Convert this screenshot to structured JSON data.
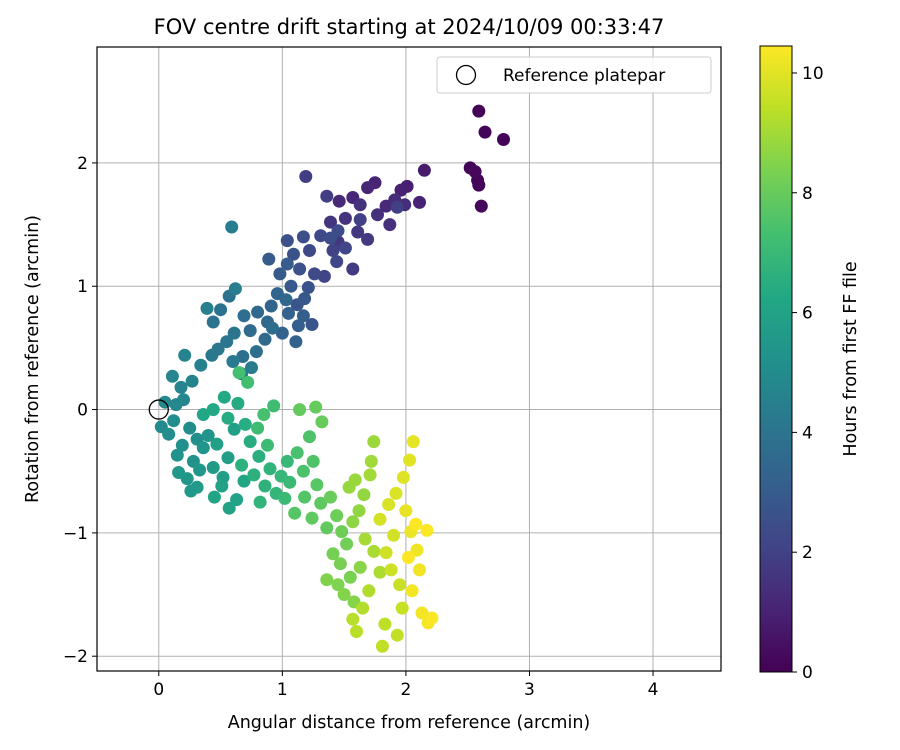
{
  "chart_data": {
    "type": "scatter",
    "title": "FOV centre drift starting at 2024/10/09 00:33:47",
    "xlabel": "Angular distance from reference (arcmin)",
    "ylabel": "Rotation from reference (arcmin)",
    "xlim": [
      -0.5,
      4.55
    ],
    "ylim": [
      -2.12,
      2.94
    ],
    "xticks": [
      0,
      1,
      2,
      3,
      4
    ],
    "yticks": [
      -2,
      -1,
      0,
      1,
      2
    ],
    "grid": true,
    "legend": {
      "position": "top-right",
      "entries": [
        {
          "label": "Reference platepar",
          "marker": "open-circle"
        }
      ]
    },
    "reference_point": {
      "x": 0,
      "y": 0
    },
    "colorbar": {
      "label": "Hours from first FF file",
      "colormap": "viridis",
      "range": [
        0,
        10.45
      ],
      "ticks": [
        0,
        2,
        4,
        6,
        8,
        10
      ]
    },
    "points_note": "Points are colored by hours from first FF file.",
    "points": [
      [
        2.59,
        2.42,
        0.05
      ],
      [
        2.64,
        2.25,
        0.08
      ],
      [
        2.79,
        2.19,
        0.1
      ],
      [
        2.52,
        1.96,
        0.12
      ],
      [
        2.58,
        1.86,
        0.14
      ],
      [
        2.59,
        1.82,
        0.16
      ],
      [
        2.61,
        1.65,
        0.18
      ],
      [
        2.56,
        1.93,
        0.2
      ],
      [
        2.15,
        1.94,
        0.8
      ],
      [
        2.01,
        1.81,
        0.9
      ],
      [
        1.96,
        1.78,
        0.95
      ],
      [
        2.11,
        1.68,
        1.0
      ],
      [
        1.75,
        1.84,
        1.05
      ],
      [
        1.69,
        1.8,
        1.1
      ],
      [
        1.57,
        1.72,
        1.15
      ],
      [
        1.46,
        1.69,
        1.2
      ],
      [
        1.84,
        1.65,
        1.25
      ],
      [
        1.91,
        1.7,
        1.3
      ],
      [
        1.99,
        1.66,
        1.35
      ],
      [
        1.87,
        1.5,
        1.4
      ],
      [
        1.77,
        1.58,
        1.45
      ],
      [
        1.63,
        1.66,
        1.5
      ],
      [
        1.51,
        1.55,
        1.55
      ],
      [
        1.39,
        1.52,
        1.6
      ],
      [
        1.45,
        1.36,
        1.65
      ],
      [
        1.61,
        1.44,
        1.7
      ],
      [
        1.69,
        1.38,
        1.75
      ],
      [
        1.57,
        1.14,
        1.8
      ],
      [
        1.36,
        1.73,
        1.85
      ],
      [
        1.19,
        1.89,
        1.9
      ],
      [
        1.93,
        1.64,
        1.95
      ],
      [
        1.63,
        1.54,
        2.0
      ],
      [
        1.41,
        1.29,
        2.05
      ],
      [
        1.34,
        1.08,
        2.1
      ],
      [
        1.51,
        1.31,
        2.15
      ],
      [
        1.44,
        1.2,
        2.2
      ],
      [
        1.31,
        1.41,
        2.25
      ],
      [
        1.22,
        1.29,
        2.3
      ],
      [
        1.26,
        1.1,
        2.35
      ],
      [
        1.45,
        1.45,
        2.4
      ],
      [
        1.39,
        1.39,
        2.45
      ],
      [
        1.17,
        1.4,
        2.5
      ],
      [
        1.04,
        1.37,
        2.55
      ],
      [
        1.09,
        1.26,
        2.6
      ],
      [
        1.14,
        1.14,
        2.65
      ],
      [
        1.21,
        0.99,
        2.7
      ],
      [
        1.12,
        0.85,
        2.75
      ],
      [
        1.24,
        0.69,
        2.8
      ],
      [
        1.18,
        0.9,
        2.85
      ],
      [
        1.07,
        1.0,
        2.9
      ],
      [
        0.98,
        1.1,
        2.95
      ],
      [
        0.89,
        1.22,
        3.0
      ],
      [
        1.04,
        1.18,
        3.05
      ],
      [
        1.17,
        0.76,
        3.1
      ],
      [
        1.13,
        0.68,
        3.15
      ],
      [
        1.05,
        0.78,
        3.2
      ],
      [
        1.11,
        0.55,
        3.25
      ],
      [
        1.0,
        0.62,
        3.3
      ],
      [
        0.91,
        0.84,
        3.35
      ],
      [
        0.96,
        0.94,
        3.4
      ],
      [
        1.03,
        0.89,
        3.45
      ],
      [
        0.88,
        0.71,
        3.5
      ],
      [
        0.8,
        0.79,
        3.55
      ],
      [
        0.74,
        0.64,
        3.6
      ],
      [
        0.86,
        0.57,
        3.65
      ],
      [
        0.92,
        0.66,
        3.7
      ],
      [
        0.69,
        0.76,
        3.75
      ],
      [
        0.79,
        0.47,
        3.8
      ],
      [
        0.68,
        0.43,
        3.85
      ],
      [
        0.57,
        0.92,
        3.9
      ],
      [
        0.5,
        0.81,
        3.95
      ],
      [
        0.44,
        0.71,
        4.0
      ],
      [
        0.61,
        0.62,
        4.05
      ],
      [
        0.55,
        0.55,
        4.1
      ],
      [
        0.48,
        0.49,
        4.15
      ],
      [
        0.43,
        0.44,
        4.2
      ],
      [
        0.6,
        0.39,
        4.25
      ],
      [
        0.67,
        0.29,
        4.3
      ],
      [
        0.75,
        0.34,
        4.35
      ],
      [
        0.59,
        1.48,
        4.4
      ],
      [
        0.62,
        0.98,
        4.45
      ],
      [
        0.39,
        0.82,
        4.5
      ],
      [
        0.34,
        0.36,
        4.55
      ],
      [
        0.21,
        0.44,
        4.6
      ],
      [
        0.27,
        0.23,
        4.65
      ],
      [
        0.18,
        0.18,
        4.7
      ],
      [
        0.11,
        0.27,
        4.75
      ],
      [
        0.2,
        0.08,
        4.8
      ],
      [
        0.14,
        0.04,
        4.85
      ],
      [
        0.05,
        0.06,
        4.9
      ],
      [
        0.02,
        -0.14,
        4.95
      ],
      [
        0.08,
        -0.2,
        5.0
      ],
      [
        0.12,
        -0.09,
        5.05
      ],
      [
        0.25,
        -0.15,
        5.1
      ],
      [
        0.19,
        -0.29,
        5.15
      ],
      [
        0.31,
        -0.24,
        5.2
      ],
      [
        0.15,
        -0.37,
        5.25
      ],
      [
        0.28,
        -0.42,
        5.3
      ],
      [
        0.36,
        -0.31,
        5.35
      ],
      [
        0.4,
        -0.21,
        5.4
      ],
      [
        0.33,
        -0.49,
        5.45
      ],
      [
        0.23,
        -0.56,
        5.5
      ],
      [
        0.16,
        -0.51,
        5.55
      ],
      [
        0.26,
        -0.66,
        5.6
      ],
      [
        0.31,
        -0.63,
        5.65
      ],
      [
        0.44,
        -0.47,
        5.7
      ],
      [
        0.52,
        -0.55,
        5.75
      ],
      [
        0.56,
        -0.39,
        5.8
      ],
      [
        0.47,
        -0.28,
        5.85
      ],
      [
        0.61,
        -0.16,
        5.9
      ],
      [
        0.51,
        -0.62,
        5.95
      ],
      [
        0.63,
        -0.73,
        6.0
      ],
      [
        0.57,
        -0.8,
        6.05
      ],
      [
        0.45,
        -0.71,
        6.1
      ],
      [
        0.69,
        -0.58,
        6.15
      ],
      [
        0.36,
        -0.04,
        6.2
      ],
      [
        0.44,
        0.0,
        6.25
      ],
      [
        0.53,
        0.1,
        6.3
      ],
      [
        0.64,
        0.05,
        6.35
      ],
      [
        0.56,
        -0.07,
        6.4
      ],
      [
        0.7,
        -0.12,
        6.45
      ],
      [
        0.74,
        -0.26,
        6.5
      ],
      [
        0.81,
        -0.38,
        6.55
      ],
      [
        0.67,
        -0.45,
        6.6
      ],
      [
        0.77,
        -0.53,
        6.65
      ],
      [
        0.86,
        -0.62,
        6.7
      ],
      [
        0.9,
        -0.48,
        6.75
      ],
      [
        0.82,
        -0.75,
        6.8
      ],
      [
        0.95,
        -0.68,
        6.85
      ],
      [
        0.99,
        -0.54,
        6.9
      ],
      [
        1.04,
        -0.42,
        6.95
      ],
      [
        1.06,
        -0.59,
        7.0
      ],
      [
        1.02,
        -0.72,
        7.05
      ],
      [
        0.88,
        -0.29,
        7.1
      ],
      [
        0.8,
        -0.15,
        7.15
      ],
      [
        0.93,
        0.03,
        7.2
      ],
      [
        0.72,
        0.22,
        7.25
      ],
      [
        0.65,
        0.3,
        7.3
      ],
      [
        0.85,
        -0.04,
        7.35
      ],
      [
        1.12,
        -0.35,
        7.4
      ],
      [
        1.17,
        -0.5,
        7.45
      ],
      [
        1.22,
        -0.22,
        7.5
      ],
      [
        1.25,
        -0.42,
        7.55
      ],
      [
        1.18,
        -0.71,
        7.6
      ],
      [
        1.1,
        -0.84,
        7.65
      ],
      [
        1.28,
        -0.61,
        7.7
      ],
      [
        1.31,
        -0.76,
        7.8
      ],
      [
        1.24,
        -0.88,
        7.85
      ],
      [
        1.36,
        -0.96,
        7.9
      ],
      [
        1.14,
        0.0,
        7.95
      ],
      [
        1.27,
        0.02,
        7.98
      ],
      [
        1.32,
        -0.1,
        8.0
      ],
      [
        1.39,
        -0.71,
        8.05
      ],
      [
        1.44,
        -0.86,
        8.1
      ],
      [
        1.48,
        -0.99,
        8.15
      ],
      [
        1.52,
        -1.09,
        8.2
      ],
      [
        1.41,
        -1.17,
        8.25
      ],
      [
        1.47,
        -1.25,
        8.3
      ],
      [
        1.55,
        -1.36,
        8.35
      ],
      [
        1.45,
        -1.42,
        8.4
      ],
      [
        1.36,
        -1.38,
        8.45
      ],
      [
        1.5,
        -1.5,
        8.5
      ],
      [
        1.58,
        -1.56,
        8.55
      ],
      [
        1.63,
        -1.28,
        8.6
      ],
      [
        1.57,
        -0.91,
        8.65
      ],
      [
        1.62,
        -0.82,
        8.7
      ],
      [
        1.66,
        -0.69,
        8.75
      ],
      [
        1.54,
        -0.63,
        8.8
      ],
      [
        1.59,
        -0.57,
        8.85
      ],
      [
        1.74,
        -0.26,
        8.9
      ],
      [
        1.72,
        -0.42,
        8.95
      ],
      [
        1.71,
        -0.53,
        9.0
      ],
      [
        1.67,
        -1.05,
        9.05
      ],
      [
        1.74,
        -1.15,
        9.1
      ],
      [
        1.79,
        -1.32,
        9.15
      ],
      [
        1.7,
        -1.47,
        9.2
      ],
      [
        1.65,
        -1.61,
        9.25
      ],
      [
        1.57,
        -1.7,
        9.3
      ],
      [
        1.6,
        -1.8,
        9.35
      ],
      [
        1.83,
        -1.74,
        9.4
      ],
      [
        1.81,
        -1.92,
        9.45
      ],
      [
        1.93,
        -1.83,
        9.5
      ],
      [
        1.97,
        -1.61,
        9.55
      ],
      [
        1.95,
        -1.42,
        9.6
      ],
      [
        1.88,
        -1.3,
        9.65
      ],
      [
        1.84,
        -1.16,
        9.7
      ],
      [
        1.9,
        -1.02,
        9.75
      ],
      [
        1.79,
        -0.89,
        9.8
      ],
      [
        1.86,
        -0.77,
        9.85
      ],
      [
        1.92,
        -0.68,
        9.9
      ],
      [
        1.98,
        -0.55,
        9.95
      ],
      [
        2.03,
        -0.41,
        10.0
      ],
      [
        2.06,
        -0.26,
        10.05
      ],
      [
        2.0,
        -0.82,
        10.1
      ],
      [
        2.04,
        -0.99,
        10.15
      ],
      [
        2.09,
        -1.14,
        10.2
      ],
      [
        2.11,
        -1.3,
        10.25
      ],
      [
        2.05,
        -1.47,
        10.28
      ],
      [
        2.13,
        -1.65,
        10.3
      ],
      [
        2.18,
        -1.73,
        10.35
      ],
      [
        2.21,
        -1.69,
        10.4
      ],
      [
        2.17,
        -0.98,
        10.42
      ],
      [
        2.08,
        -0.93,
        10.44
      ],
      [
        2.02,
        -1.2,
        10.45
      ]
    ]
  }
}
